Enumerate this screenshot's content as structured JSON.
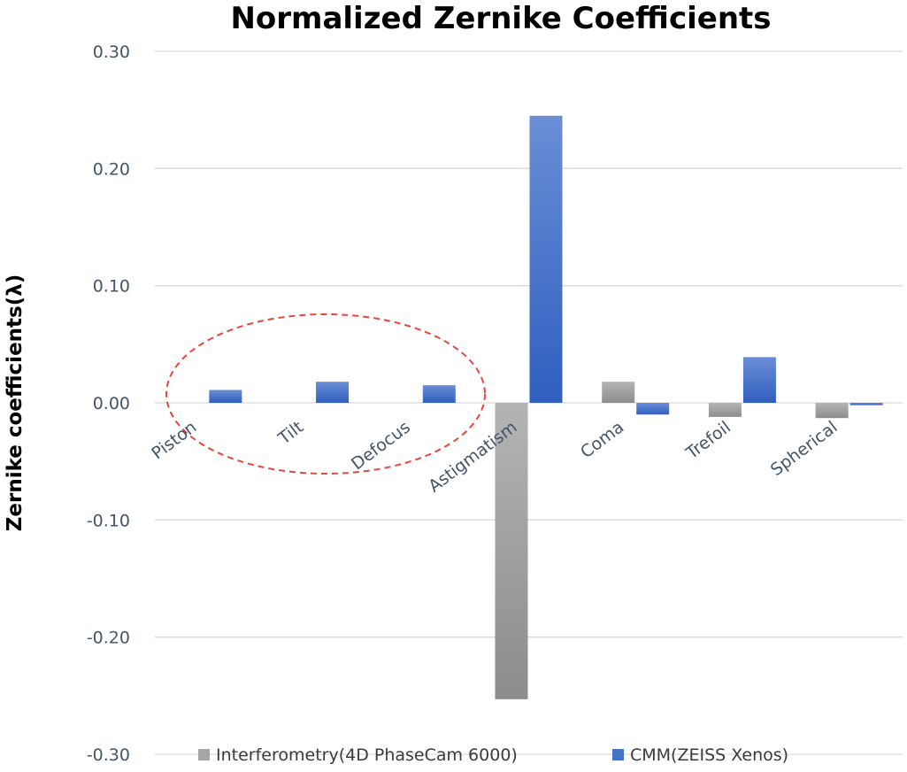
{
  "chart_data": {
    "type": "bar",
    "title": "Normalized Zernike Coefficients",
    "ylabel": "Zernike coefficients(λ)",
    "xlabel": "",
    "ylim": [
      -0.3,
      0.3
    ],
    "yticks": [
      "0.30",
      "0.20",
      "0.10",
      "0.00",
      "-0.10",
      "-0.20",
      "-0.30"
    ],
    "ytick_values": [
      0.3,
      0.2,
      0.1,
      0.0,
      -0.1,
      -0.2,
      -0.3
    ],
    "categories": [
      "Piston",
      "Tilt",
      "Defocus",
      "Astigmatism",
      "Coma",
      "Trefoil",
      "Spherical"
    ],
    "series": [
      {
        "name": "Interferometry(4D PhaseCam 6000)",
        "color": "#a6a6a6",
        "values": [
          0.0,
          0.0,
          0.0,
          -0.253,
          0.018,
          -0.012,
          -0.013
        ]
      },
      {
        "name": "CMM(ZEISS Xenos)",
        "color": "#4472c4",
        "values": [
          0.011,
          0.018,
          0.015,
          0.245,
          -0.01,
          0.039,
          -0.002
        ]
      }
    ],
    "grid": true,
    "legend_position": "bottom",
    "annotation": {
      "shape": "dashed-ellipse",
      "color": "#e8463c",
      "encloses": [
        "Piston",
        "Tilt",
        "Defocus"
      ]
    }
  }
}
